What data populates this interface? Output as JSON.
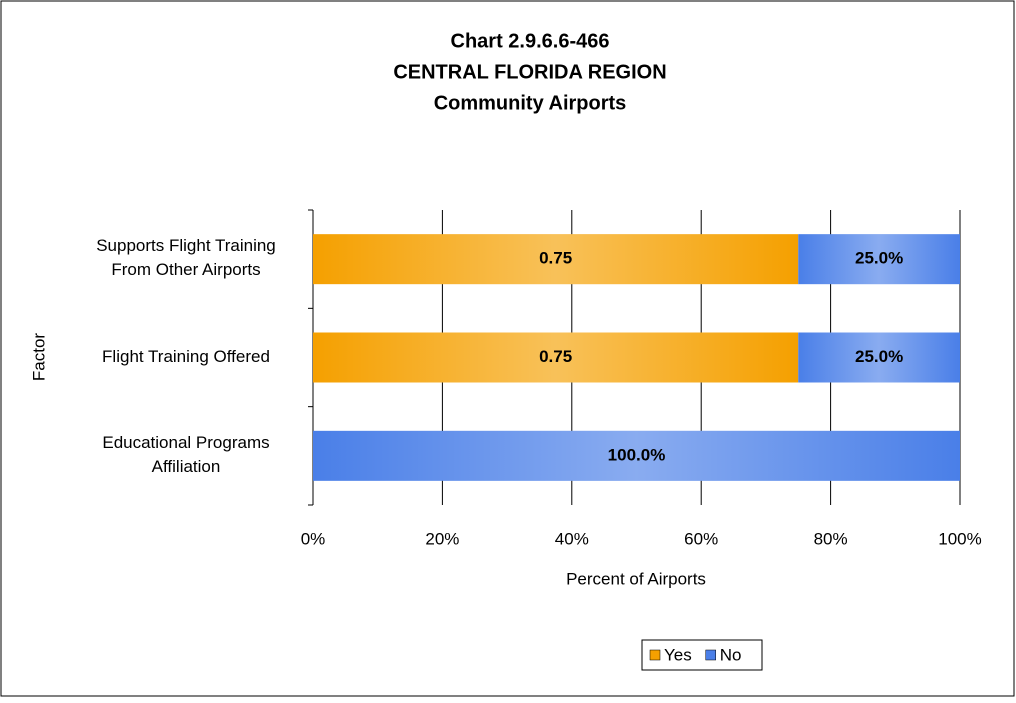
{
  "chart_data": {
    "type": "stacked_barh",
    "title": [
      "Chart 2.9.6.6-466",
      "CENTRAL FLORIDA REGION",
      "Community Airports"
    ],
    "categories": [
      "Supports Flight Training\nFrom Other Airports",
      "Flight Training Offered",
      "Educational Programs\nAffiliation"
    ],
    "series": [
      {
        "name": "Yes",
        "color": "#f5a000",
        "values": [
          75,
          75,
          0
        ],
        "value_labels": [
          "0.75",
          "0.75",
          null
        ]
      },
      {
        "name": "No",
        "color": "#4a7fe8",
        "values": [
          25,
          25,
          100
        ],
        "value_labels": [
          "25.0%",
          "25.0%",
          "100.0%"
        ]
      }
    ],
    "xlabel": "Percent of Airports",
    "ylabel": "Factor",
    "xlim": [
      0,
      100
    ],
    "xticks": [
      {
        "value": 0,
        "label": "0%"
      },
      {
        "value": 20,
        "label": "20%"
      },
      {
        "value": 40,
        "label": "40%"
      },
      {
        "value": 60,
        "label": "60%"
      },
      {
        "value": 80,
        "label": "80%"
      },
      {
        "value": 100,
        "label": "100%"
      }
    ],
    "grid": true,
    "legend": "bottom"
  }
}
